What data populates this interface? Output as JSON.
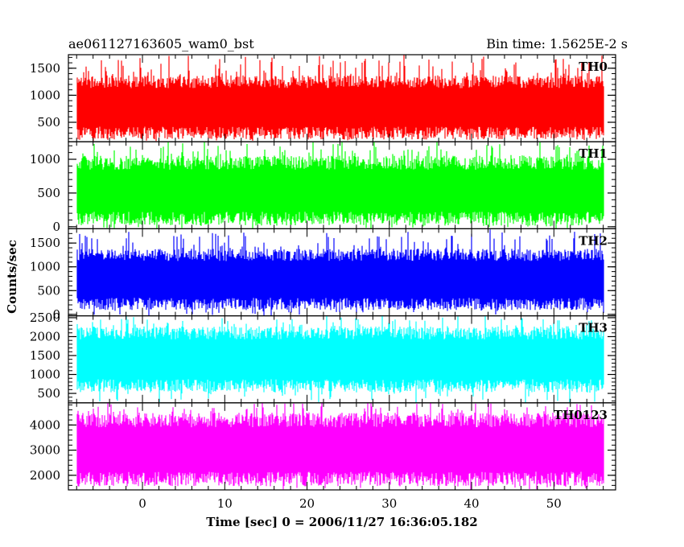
{
  "header": {
    "left": "ae061127163605_wam0_bst",
    "right": "Bin time: 1.5625E-2 s"
  },
  "chart_data": {
    "type": "line",
    "x": {
      "start": -7.9,
      "end": 56.0,
      "step": 0.015625
    },
    "xlim": [
      -9.0,
      57.5
    ],
    "x_ticks": [
      0,
      10,
      20,
      30,
      40,
      50
    ],
    "x_tick_labels": [
      "0",
      "10",
      "20",
      "30",
      "40",
      "50"
    ],
    "xlabel": "Time [sec] 0 = 2006/11/27 16:36:05.182",
    "ylabel": "Counts/sec",
    "grid": false,
    "series": [
      {
        "name": "TH0",
        "color": "#ff0000",
        "ylim": [
          140,
          1750
        ],
        "typical_low": 300,
        "typical_high": 1250,
        "spike_max": 1750,
        "y_ticks": [
          500,
          1000,
          1500
        ],
        "y_tick_labels": [
          "500",
          "1000",
          "1500"
        ]
      },
      {
        "name": "TH1",
        "color": "#00ff00",
        "ylim": [
          -30,
          1260
        ],
        "typical_low": 120,
        "typical_high": 950,
        "spike_max": 1260,
        "y_ticks": [
          0,
          500,
          1000
        ],
        "y_tick_labels": [
          "0",
          "500",
          "1000"
        ]
      },
      {
        "name": "TH2",
        "color": "#0000ff",
        "ylim": [
          -30,
          1800
        ],
        "typical_low": 220,
        "typical_high": 1250,
        "spike_max": 1800,
        "y_ticks": [
          0,
          500,
          1000,
          1500
        ],
        "y_tick_labels": [
          "0",
          "500",
          "1000",
          "1500"
        ]
      },
      {
        "name": "TH3",
        "color": "#00ffff",
        "ylim": [
          250,
          2550
        ],
        "typical_low": 700,
        "typical_high": 2100,
        "spike_max": 2550,
        "y_ticks": [
          500,
          1000,
          1500,
          2000,
          2500
        ],
        "y_tick_labels": [
          "500",
          "1000",
          "1500",
          "2000",
          "2500"
        ]
      },
      {
        "name": "TH0123",
        "color": "#ff00ff",
        "ylim": [
          1420,
          4880
        ],
        "typical_low": 1850,
        "typical_high": 4200,
        "spike_max": 4880,
        "y_ticks": [
          2000,
          3000,
          4000
        ],
        "y_tick_labels": [
          "2000",
          "3000",
          "4000"
        ]
      }
    ]
  }
}
